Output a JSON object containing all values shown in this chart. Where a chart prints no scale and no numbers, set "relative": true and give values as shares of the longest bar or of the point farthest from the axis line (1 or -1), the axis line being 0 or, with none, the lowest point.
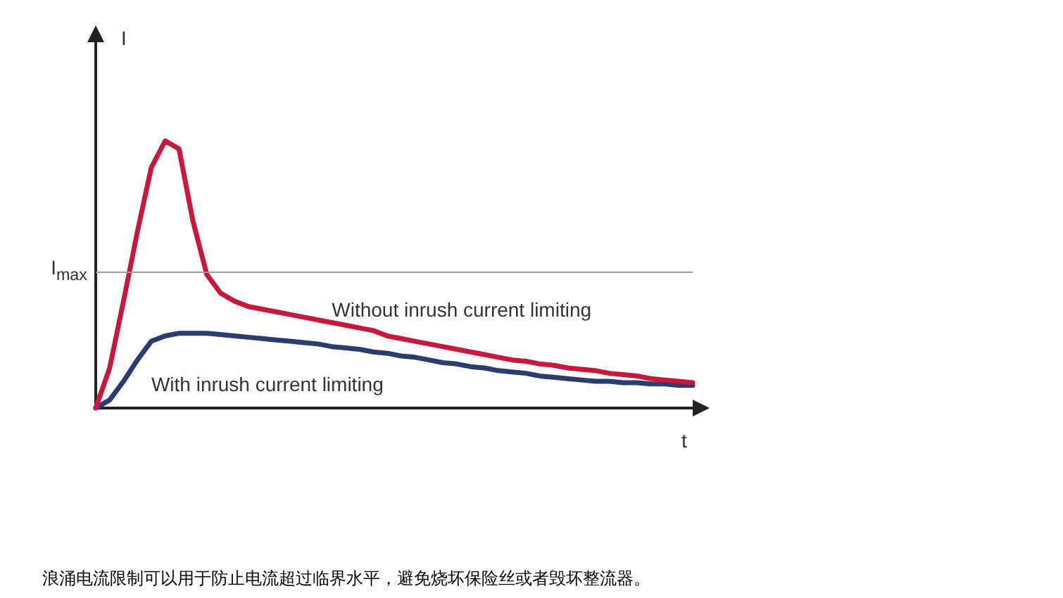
{
  "chart_data": {
    "type": "line",
    "relative": true,
    "xlabel": "t",
    "ylabel": "I",
    "marker": "none",
    "line_style": "solid",
    "categories": [
      null,
      null,
      null,
      null,
      null,
      null,
      null,
      null,
      null,
      null,
      null,
      null,
      null,
      null,
      null,
      null,
      null,
      null,
      null,
      null,
      null,
      null,
      null,
      null,
      null,
      null,
      null,
      null,
      null,
      null,
      null,
      null,
      null,
      null,
      null,
      null,
      null,
      null,
      null,
      null,
      null,
      null,
      null,
      null
    ],
    "series": [
      {
        "name": "Without inrush current limiting",
        "color": "#c8183c",
        "values": [
          0,
          0.15,
          0.4,
          0.66,
          0.9,
          1,
          0.97,
          0.7,
          0.5,
          0.43,
          0.4,
          0.38,
          0.37,
          0.36,
          0.35,
          0.34,
          0.33,
          0.32,
          0.31,
          0.3,
          0.29,
          0.27,
          0.26,
          0.25,
          0.24,
          0.23,
          0.22,
          0.21,
          0.2,
          0.19,
          0.18,
          0.175,
          0.165,
          0.16,
          0.15,
          0.145,
          0.14,
          0.13,
          0.125,
          0.12,
          0.11,
          0.105,
          0.1,
          0.095
        ]
      },
      {
        "name": "With inrush current limiting",
        "color": "#2b3d70",
        "values": [
          0,
          0.03,
          0.1,
          0.18,
          0.25,
          0.27,
          0.28,
          0.28,
          0.28,
          0.275,
          0.27,
          0.265,
          0.26,
          0.255,
          0.25,
          0.245,
          0.24,
          0.23,
          0.225,
          0.22,
          0.21,
          0.205,
          0.195,
          0.19,
          0.18,
          0.17,
          0.165,
          0.155,
          0.15,
          0.14,
          0.135,
          0.13,
          0.12,
          0.115,
          0.11,
          0.105,
          0.1,
          0.1,
          0.095,
          0.095,
          0.09,
          0.09,
          0.085,
          0.085
        ]
      }
    ],
    "ref_lines": [
      {
        "axis": "y",
        "value": 0.507,
        "label": "I$_{max}$",
        "color": "#a0a0a0"
      }
    ],
    "annotations": [
      "浪涌电流限制可以用于防止电流超过临界水平，避免烧坏保险丝或者毁坏整流器。"
    ]
  }
}
